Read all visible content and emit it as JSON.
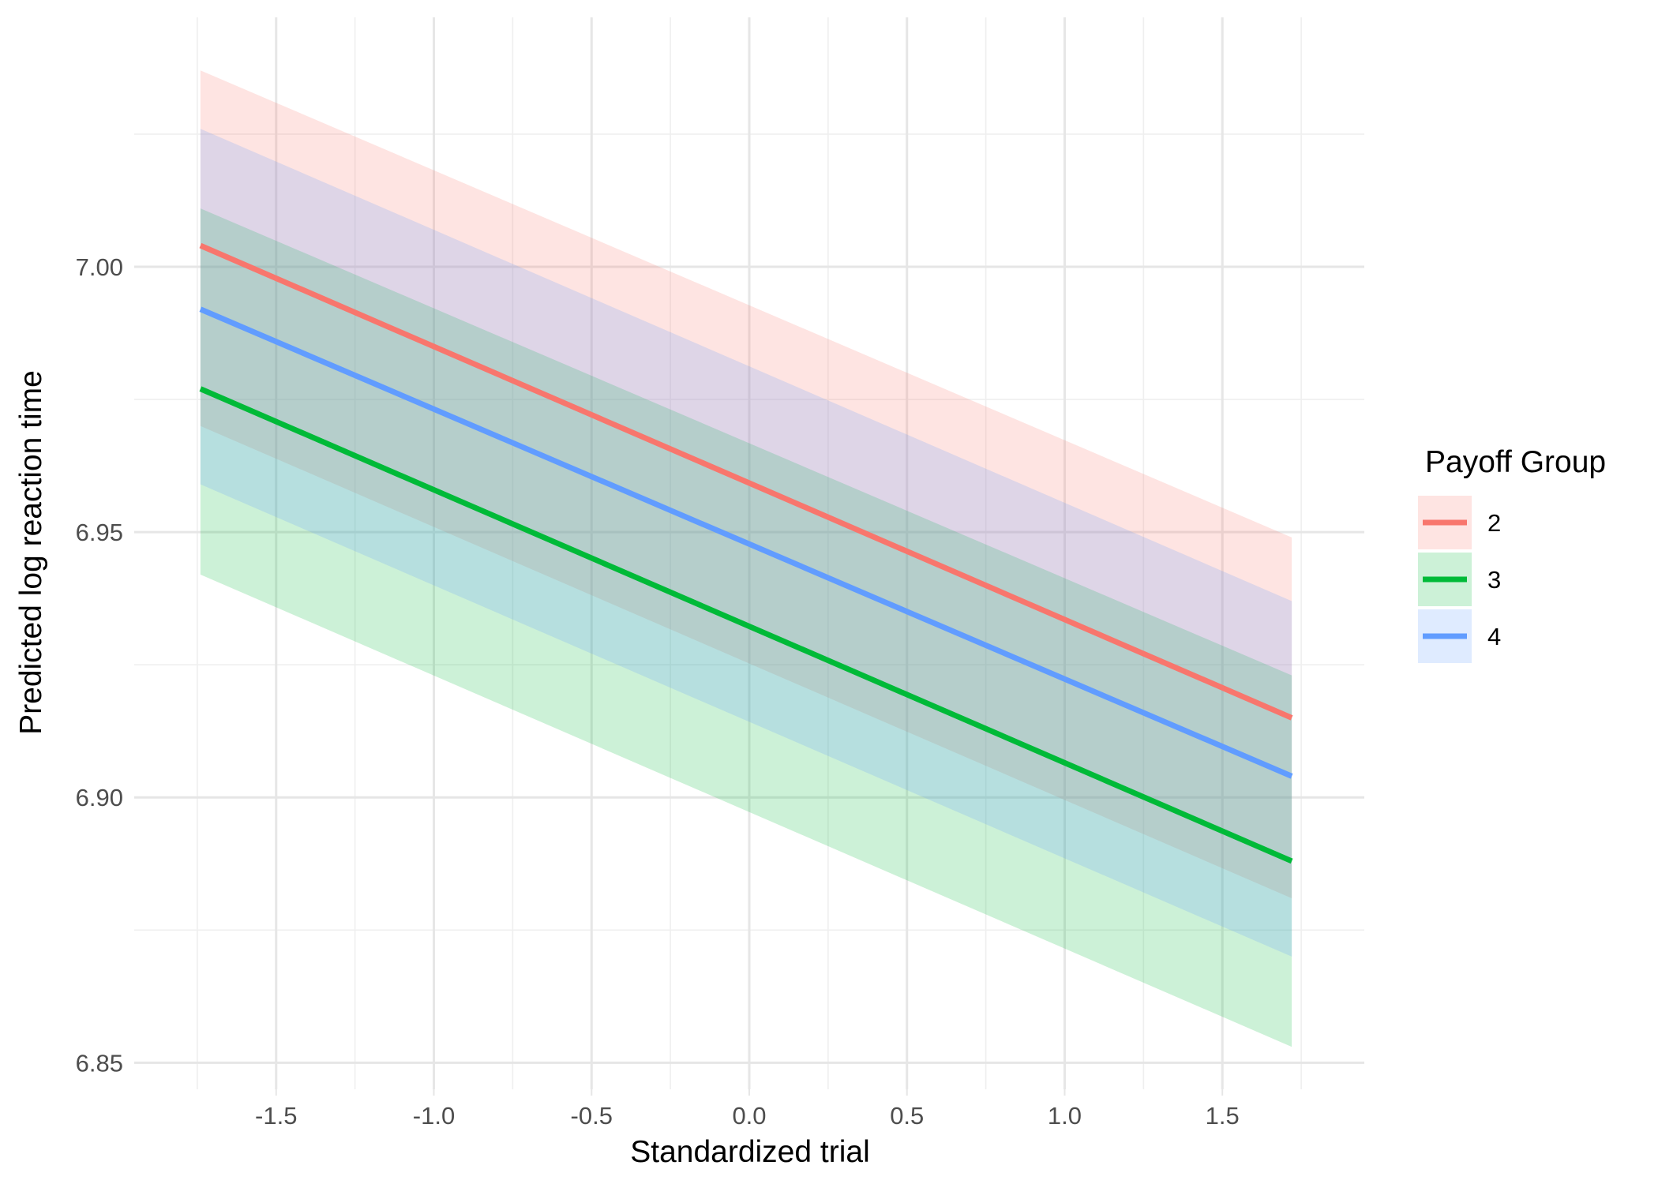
{
  "chart_data": {
    "type": "line",
    "xlabel": "Standardized trial",
    "ylabel": "Predicted log reaction time",
    "xlim": [
      -1.95,
      1.95
    ],
    "ylim": [
      6.845,
      7.047
    ],
    "x_ticks": [
      -1.5,
      -1.0,
      -0.5,
      0.0,
      0.5,
      1.0,
      1.5
    ],
    "x_tick_labels": [
      "-1.5",
      "-1.0",
      "-0.5",
      "0.0",
      "0.5",
      "1.0",
      "1.5"
    ],
    "y_ticks": [
      6.85,
      6.9,
      6.95,
      7.0
    ],
    "y_tick_labels": [
      "6.85",
      "6.90",
      "6.95",
      "7.00"
    ],
    "grid": true,
    "legend": {
      "title": "Payoff Group",
      "position": "right"
    },
    "series": [
      {
        "name": "2",
        "color": "#F8766D",
        "x": [
          -1.74,
          1.72
        ],
        "y": [
          7.004,
          6.915
        ],
        "ymin": [
          6.97,
          6.881
        ],
        "ymax": [
          7.037,
          6.949
        ]
      },
      {
        "name": "3",
        "color": "#00BA38",
        "x": [
          -1.74,
          1.72
        ],
        "y": [
          6.977,
          6.888
        ],
        "ymin": [
          6.942,
          6.853
        ],
        "ymax": [
          7.011,
          6.923
        ]
      },
      {
        "name": "4",
        "color": "#619CFF",
        "x": [
          -1.74,
          1.72
        ],
        "y": [
          6.992,
          6.904
        ],
        "ymin": [
          6.959,
          6.87
        ],
        "ymax": [
          7.026,
          6.937
        ]
      }
    ]
  }
}
